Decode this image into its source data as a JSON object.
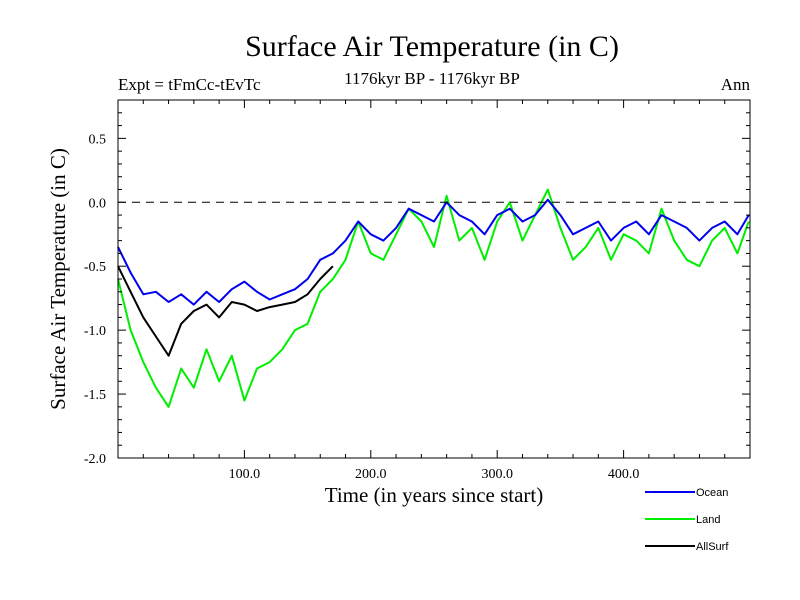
{
  "chart_data": {
    "type": "line",
    "title": "Surface Air Temperature (in C)",
    "subtitle_left": "Expt = tFmCc-tEvTc",
    "subtitle_center": "1176kyr BP - 1176kyr BP",
    "subtitle_right": "Ann",
    "xlabel": "Time (in years since start)",
    "ylabel": "Surface Air Temperature (in C)",
    "xlim": [
      0,
      500
    ],
    "ylim": [
      -2.0,
      0.8
    ],
    "xticks": [
      100,
      200,
      300,
      400
    ],
    "xtick_labels": [
      "100.0",
      "200.0",
      "300.0",
      "400.0"
    ],
    "yticks": [
      0.5,
      0.0,
      -0.5,
      -1.0,
      -1.5,
      -2.0
    ],
    "ytick_labels": [
      "0.5",
      "0.0",
      "-0.5",
      "-1.0",
      "-1.5",
      "-2.0"
    ],
    "reference_line": 0.0,
    "series": [
      {
        "name": "Ocean",
        "color": "#0000ee",
        "x": [
          0,
          10,
          20,
          30,
          40,
          50,
          60,
          70,
          80,
          90,
          100,
          110,
          120,
          130,
          140,
          150,
          160,
          170,
          180,
          190,
          200,
          210,
          220,
          230,
          240,
          250,
          260,
          270,
          280,
          290,
          300,
          310,
          320,
          330,
          340,
          350,
          360,
          370,
          380,
          390,
          400,
          410,
          420,
          430,
          440,
          450,
          460,
          470,
          480,
          490,
          499
        ],
        "values": [
          -0.35,
          -0.55,
          -0.72,
          -0.7,
          -0.78,
          -0.72,
          -0.8,
          -0.7,
          -0.78,
          -0.68,
          -0.62,
          -0.7,
          -0.76,
          -0.72,
          -0.68,
          -0.6,
          -0.45,
          -0.4,
          -0.3,
          -0.15,
          -0.25,
          -0.3,
          -0.2,
          -0.05,
          -0.1,
          -0.15,
          0.0,
          -0.1,
          -0.15,
          -0.25,
          -0.1,
          -0.05,
          -0.15,
          -0.1,
          0.02,
          -0.1,
          -0.25,
          -0.2,
          -0.15,
          -0.3,
          -0.2,
          -0.15,
          -0.25,
          -0.1,
          -0.15,
          -0.2,
          -0.3,
          -0.2,
          -0.15,
          -0.25,
          -0.1
        ]
      },
      {
        "name": "Land",
        "color": "#00ee00",
        "x": [
          0,
          10,
          20,
          30,
          40,
          50,
          60,
          70,
          80,
          90,
          100,
          110,
          120,
          130,
          140,
          150,
          160,
          170,
          180,
          190,
          200,
          210,
          220,
          230,
          240,
          250,
          260,
          270,
          280,
          290,
          300,
          310,
          320,
          330,
          340,
          350,
          360,
          370,
          380,
          390,
          400,
          410,
          420,
          430,
          440,
          450,
          460,
          470,
          480,
          490,
          499
        ],
        "values": [
          -0.6,
          -1.0,
          -1.25,
          -1.45,
          -1.6,
          -1.3,
          -1.45,
          -1.15,
          -1.4,
          -1.2,
          -1.55,
          -1.3,
          -1.25,
          -1.15,
          -1.0,
          -0.95,
          -0.7,
          -0.6,
          -0.45,
          -0.15,
          -0.4,
          -0.45,
          -0.25,
          -0.05,
          -0.15,
          -0.35,
          0.05,
          -0.3,
          -0.2,
          -0.45,
          -0.15,
          0.0,
          -0.3,
          -0.1,
          0.1,
          -0.2,
          -0.45,
          -0.35,
          -0.2,
          -0.45,
          -0.25,
          -0.3,
          -0.4,
          -0.05,
          -0.3,
          -0.45,
          -0.5,
          -0.3,
          -0.2,
          -0.4,
          -0.15
        ]
      },
      {
        "name": "AllSurf",
        "color": "#000000",
        "x": [
          0,
          10,
          20,
          30,
          40,
          50,
          60,
          70,
          80,
          90,
          100,
          110,
          120,
          130,
          140,
          150,
          160,
          170
        ],
        "values": [
          -0.5,
          -0.7,
          -0.9,
          -1.05,
          -1.2,
          -0.95,
          -0.85,
          -0.8,
          -0.9,
          -0.78,
          -0.8,
          -0.85,
          -0.82,
          -0.8,
          -0.78,
          -0.72,
          -0.6,
          -0.5
        ]
      }
    ],
    "legend_placement": "bottom-right"
  }
}
